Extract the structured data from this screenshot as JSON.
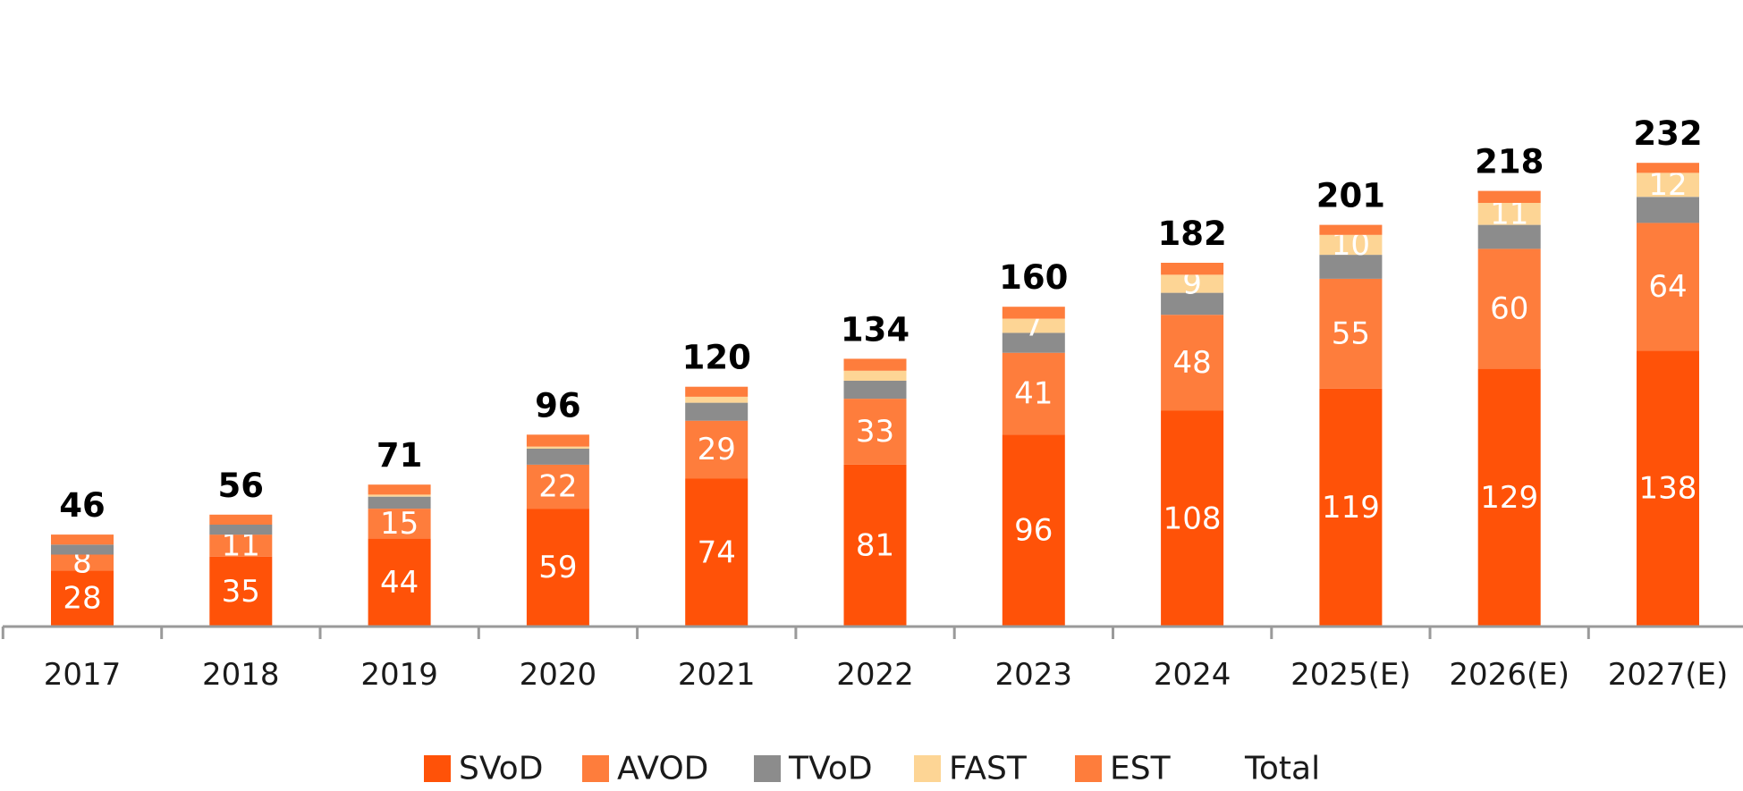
{
  "chart_data": {
    "type": "bar",
    "stacked": true,
    "categories": [
      "2017",
      "2018",
      "2019",
      "2020",
      "2021",
      "2022",
      "2023",
      "2024",
      "2025(E)",
      "2026(E)",
      "2027(E)"
    ],
    "series": [
      {
        "name": "SVoD",
        "color": "#FF5208",
        "values": [
          28,
          35,
          44,
          59,
          74,
          81,
          96,
          108,
          119,
          129,
          138
        ],
        "labeled": true
      },
      {
        "name": "AVOD",
        "color": "#FE7D3C",
        "values": [
          8,
          11,
          15,
          22,
          29,
          33,
          41,
          48,
          55,
          60,
          64
        ],
        "labeled": true
      },
      {
        "name": "TVoD",
        "color": "#8C8C8C",
        "values": [
          5,
          5,
          6,
          8,
          9,
          9,
          10,
          11,
          12,
          12,
          13
        ],
        "labeled": false
      },
      {
        "name": "FAST",
        "color": "#FDD595",
        "values": [
          0,
          0,
          1,
          1,
          3,
          5,
          7,
          9,
          10,
          11,
          12
        ],
        "labeled_from_index": 6
      },
      {
        "name": "EST",
        "color": "#FE7D3C",
        "values": [
          5,
          5,
          5,
          6,
          5,
          6,
          6,
          6,
          5,
          6,
          5
        ],
        "labeled": false
      }
    ],
    "totals": [
      46,
      56,
      71,
      96,
      120,
      134,
      160,
      182,
      201,
      218,
      232
    ],
    "total_label": "Total",
    "ylim": [
      0,
      240
    ],
    "grid": false,
    "legend_position": "bottom"
  }
}
